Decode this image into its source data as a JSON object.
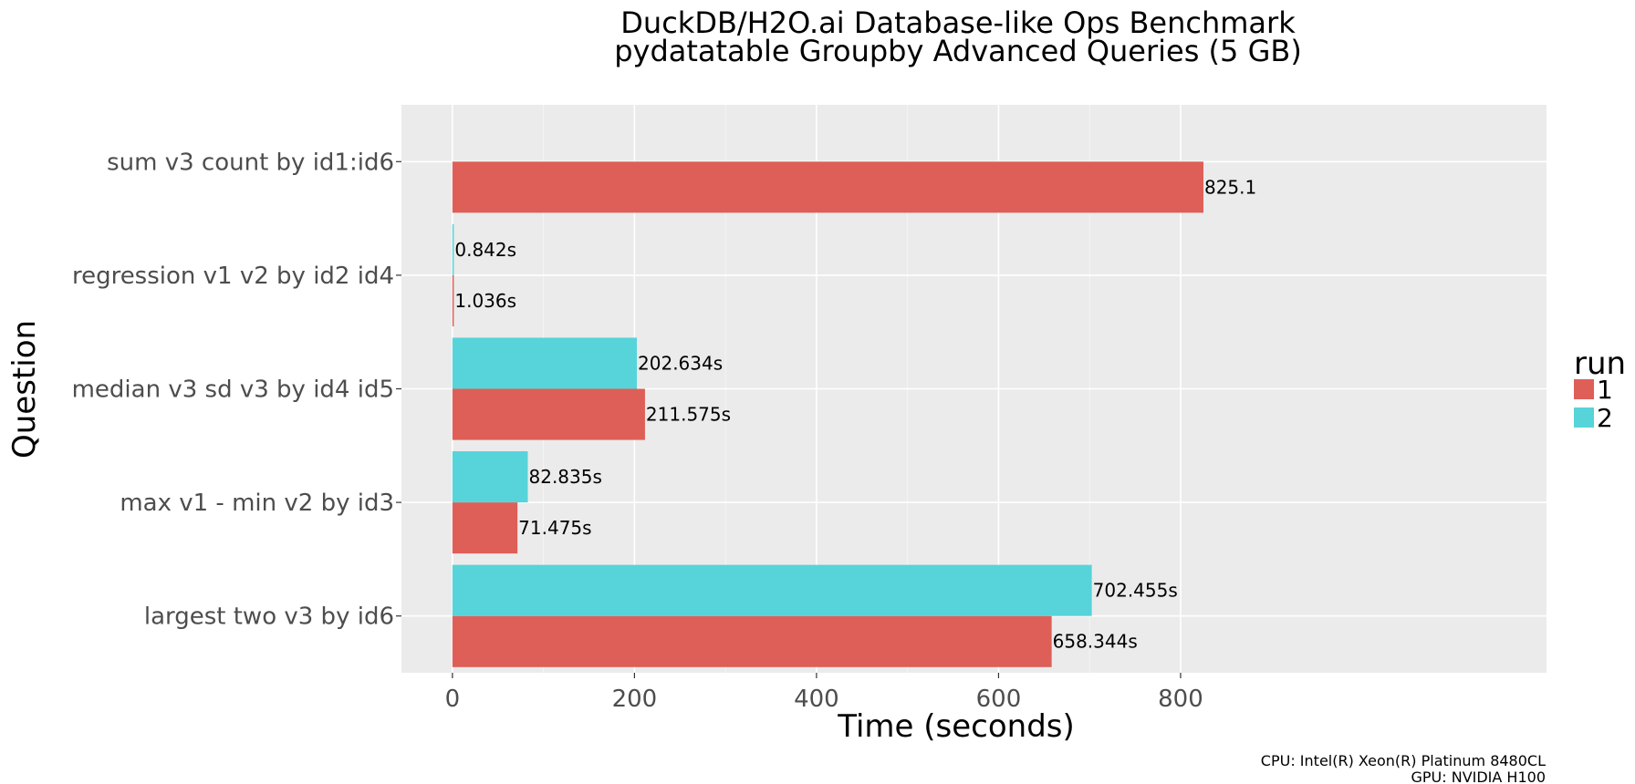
{
  "chart_data": {
    "type": "bar",
    "orientation": "horizontal",
    "title": "DuckDB/H2O.ai Database-like Ops Benchmark",
    "subtitle": "pydatatable Groupby Advanced Queries (5 GB)",
    "xlabel": "Time (seconds)",
    "ylabel": "Question",
    "xlim": [
      -56,
      1202
    ],
    "xticks": [
      0,
      200,
      400,
      600,
      800
    ],
    "grid": true,
    "categories": [
      "sum v3 count by id1:id6",
      "regression v1 v2 by id2 id4",
      "median v3 sd v3 by id4 id5",
      "max v1 - min v2 by id3",
      "largest two v3 by id6"
    ],
    "legend": {
      "title": "run",
      "position": "right"
    },
    "series": [
      {
        "name": "1",
        "color": "#dd5f57",
        "values": [
          825.1,
          1.036,
          211.575,
          71.475,
          658.344
        ],
        "labels": [
          "825.1",
          "1.036s",
          "211.575s",
          "71.475s",
          "658.344s"
        ]
      },
      {
        "name": "2",
        "color": "#57d3da",
        "values": [
          null,
          0.842,
          202.634,
          82.835,
          702.455
        ],
        "labels": [
          "",
          "0.842s",
          "202.634s",
          "82.835s",
          "702.455s"
        ]
      }
    ],
    "caption": [
      "CPU: Intel(R) Xeon(R) Platinum 8480CL",
      "GPU: NVIDIA H100"
    ]
  }
}
